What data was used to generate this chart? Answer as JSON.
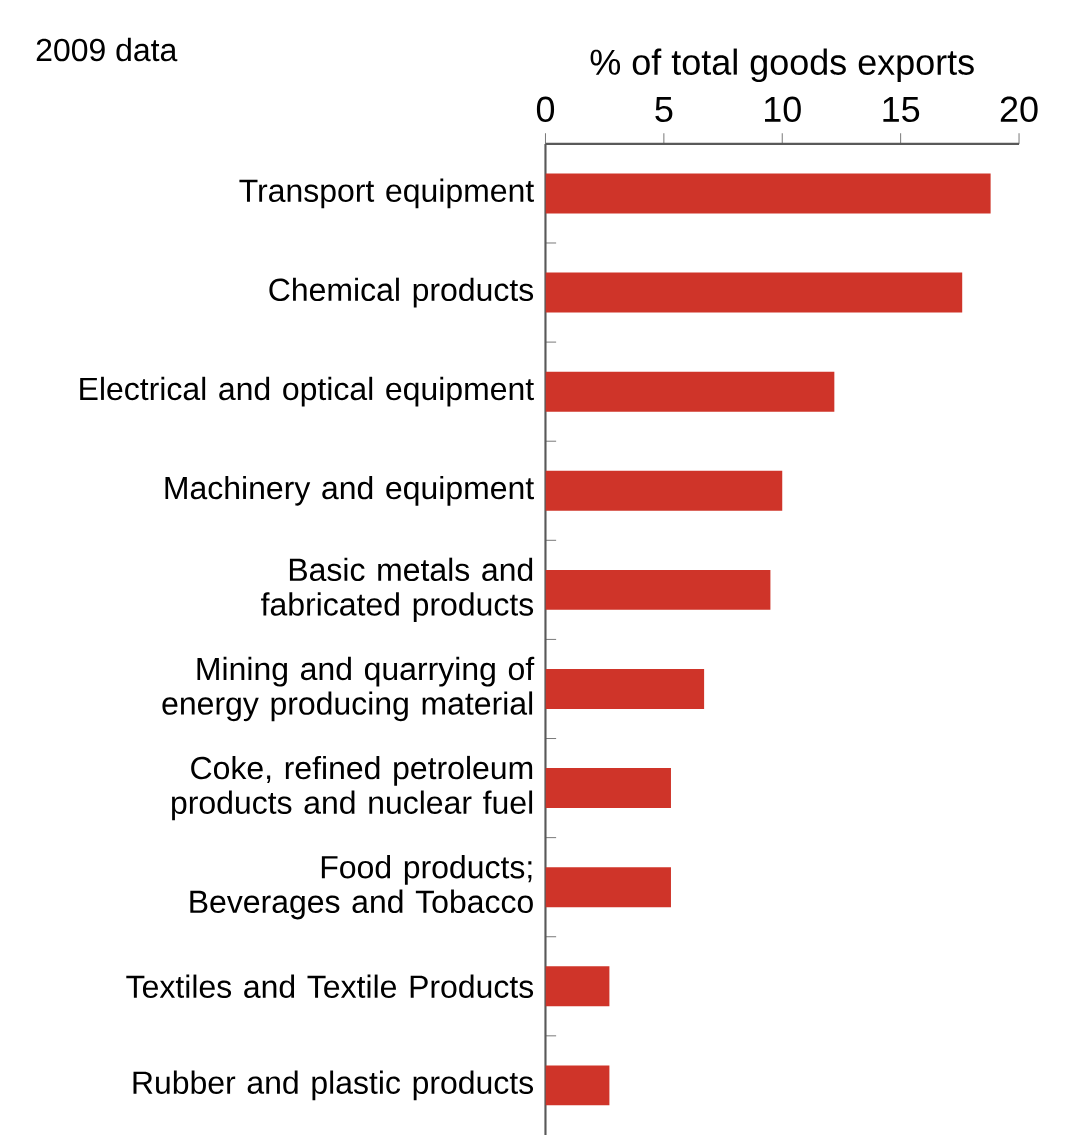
{
  "chart_data": {
    "type": "bar",
    "orientation": "horizontal",
    "title": "2009 data",
    "xlabel": "% of total goods exports",
    "categories": [
      "Transport equipment",
      "Chemical products",
      "Electrical and optical equipment",
      "Machinery and equipment",
      "Basic metals and fabricated products",
      "Mining and quarrying of energy producing material",
      "Coke, refined petroleum products and nuclear fuel",
      "Food products; Beverages and Tobacco",
      "Textiles and Textile Products",
      "Rubber and plastic products"
    ],
    "values": [
      18.8,
      17.6,
      12.2,
      10.0,
      9.5,
      6.7,
      5.3,
      5.3,
      2.7,
      2.7
    ],
    "color": "#cf3429",
    "xlim": [
      0,
      20
    ],
    "xticks": [
      0,
      5,
      10,
      15,
      20
    ]
  }
}
